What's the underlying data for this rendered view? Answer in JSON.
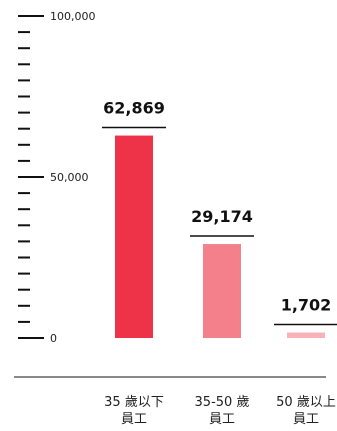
{
  "chart_data": {
    "type": "bar",
    "categories": [
      [
        "35 歲以下",
        "員工"
      ],
      [
        "35-50 歲",
        "員工"
      ],
      [
        "50 歲以上",
        "員工"
      ]
    ],
    "values": [
      62869,
      29174,
      1702
    ],
    "value_labels": [
      "62,869",
      "29,174",
      "1,702"
    ],
    "ylim": [
      0,
      100000
    ],
    "y_ticks": [
      {
        "value": 0,
        "label": "0"
      },
      {
        "value": 50000,
        "label": "50,000"
      },
      {
        "value": 100000,
        "label": "100,000"
      }
    ],
    "minor_tick_step": 5000,
    "title": "",
    "xlabel": "",
    "ylabel": "",
    "grid": false,
    "legend": "none",
    "colors": [
      "#ee3349",
      "#f4808c",
      "#f8b2b9"
    ],
    "axis_color": "#111111"
  }
}
